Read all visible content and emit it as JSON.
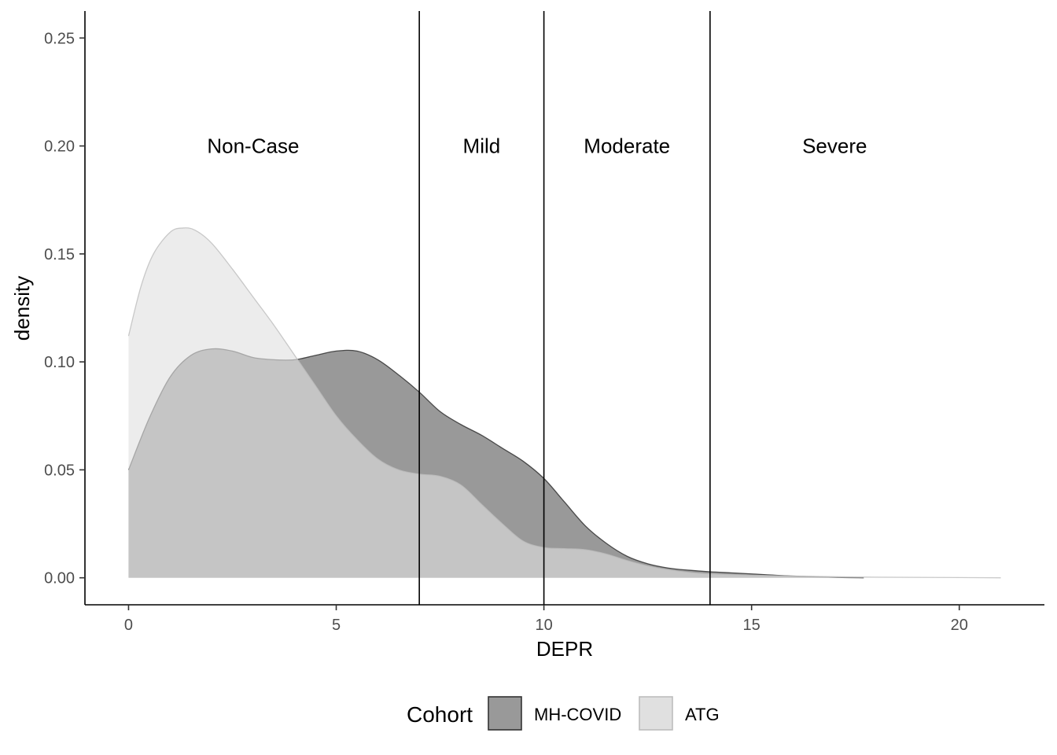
{
  "chart_data": {
    "type": "area",
    "title": "",
    "xlabel": "DEPR",
    "ylabel": "density",
    "xlim": [
      -1.05,
      22.05
    ],
    "ylim": [
      -0.0125,
      0.2625
    ],
    "x_ticks": [
      0,
      5,
      10,
      15,
      20
    ],
    "y_ticks": [
      0.0,
      0.05,
      0.1,
      0.15,
      0.2,
      0.25
    ],
    "y_tick_labels": [
      "0.00",
      "0.05",
      "0.10",
      "0.15",
      "0.20",
      "0.25"
    ],
    "grid": false,
    "legend": {
      "title": "Cohort",
      "position": "bottom"
    },
    "cutoffs": [
      7,
      10,
      14
    ],
    "regions": [
      {
        "label": "Non-Case",
        "x": 3
      },
      {
        "label": "Mild",
        "x": 8.5
      },
      {
        "label": "Moderate",
        "x": 12
      },
      {
        "label": "Severe",
        "x": 17
      }
    ],
    "region_label_y": 0.2,
    "series": [
      {
        "name": "ATG",
        "color": "#e0e0e0",
        "stroke": "#bdbdbd",
        "x": [
          0,
          0.3,
          0.6,
          1.0,
          1.3,
          1.6,
          2.0,
          2.5,
          3.0,
          3.5,
          4.0,
          4.5,
          5.0,
          5.5,
          6.0,
          6.5,
          7.0,
          7.5,
          8.0,
          8.5,
          9.0,
          9.5,
          10.0,
          10.5,
          11.0,
          11.5,
          12.0,
          12.5,
          13.0,
          13.5,
          14.0,
          15.0,
          16.0,
          17.0,
          18.0,
          19.0,
          20.0,
          21.0
        ],
        "y": [
          0.112,
          0.135,
          0.15,
          0.16,
          0.162,
          0.161,
          0.155,
          0.143,
          0.13,
          0.117,
          0.103,
          0.089,
          0.075,
          0.064,
          0.055,
          0.05,
          0.048,
          0.047,
          0.043,
          0.034,
          0.025,
          0.017,
          0.014,
          0.0135,
          0.013,
          0.011,
          0.008,
          0.0055,
          0.0037,
          0.0025,
          0.0018,
          0.0012,
          0.0008,
          0.0005,
          0.0003,
          0.0002,
          0.0001,
          0.0
        ]
      },
      {
        "name": "MH-COVID",
        "color": "#999999",
        "stroke": "#333333",
        "x": [
          0,
          0.5,
          1.0,
          1.5,
          2.0,
          2.5,
          3.0,
          3.5,
          4.0,
          4.5,
          5.0,
          5.5,
          6.0,
          6.5,
          7.0,
          7.5,
          8.0,
          8.5,
          9.0,
          9.5,
          10.0,
          10.5,
          11.0,
          11.5,
          12.0,
          12.5,
          13.0,
          13.5,
          14.0,
          14.5,
          15.0,
          16.0,
          17.0,
          17.7
        ],
        "y": [
          0.05,
          0.074,
          0.093,
          0.103,
          0.106,
          0.105,
          0.102,
          0.101,
          0.101,
          0.103,
          0.105,
          0.105,
          0.101,
          0.094,
          0.086,
          0.077,
          0.071,
          0.066,
          0.06,
          0.054,
          0.046,
          0.035,
          0.024,
          0.016,
          0.01,
          0.0065,
          0.0045,
          0.0035,
          0.0028,
          0.0023,
          0.0018,
          0.0008,
          0.0002,
          0.0
        ]
      }
    ],
    "legend_order": [
      "MH-COVID",
      "ATG"
    ]
  }
}
